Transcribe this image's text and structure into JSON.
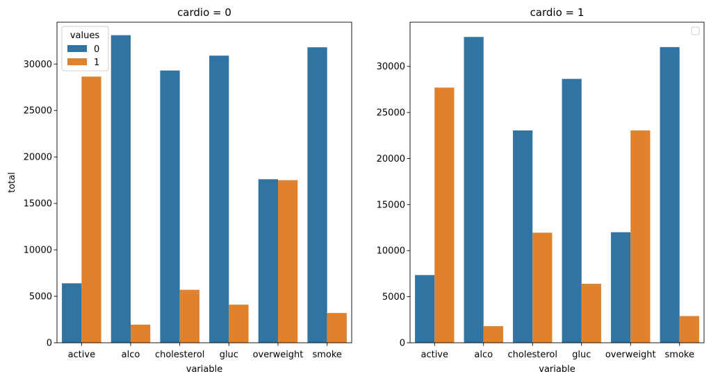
{
  "chart_data": [
    {
      "type": "bar",
      "title": "cardio = 0",
      "xlabel": "variable",
      "ylabel": "total",
      "ylim": [
        0,
        34500
      ],
      "yticks": [
        0,
        5000,
        10000,
        15000,
        20000,
        25000,
        30000
      ],
      "categories": [
        "active",
        "alco",
        "cholesterol",
        "gluc",
        "overweight",
        "smoke"
      ],
      "series": [
        {
          "name": "0",
          "color": "#3274a1",
          "values": [
            6400,
            33100,
            29300,
            30900,
            17600,
            31800
          ]
        },
        {
          "name": "1",
          "color": "#e1812c",
          "values": [
            28650,
            1950,
            5700,
            4100,
            17500,
            3200
          ]
        }
      ],
      "legend": {
        "title": "values",
        "placement": "upper-left",
        "entries": [
          "0",
          "1"
        ]
      }
    },
    {
      "type": "bar",
      "title": "cardio = 1",
      "xlabel": "variable",
      "ylabel": "",
      "ylim": [
        0,
        34800
      ],
      "yticks": [
        0,
        5000,
        10000,
        15000,
        20000,
        25000,
        30000
      ],
      "categories": [
        "active",
        "alco",
        "cholesterol",
        "gluc",
        "overweight",
        "smoke"
      ],
      "series": [
        {
          "name": "0",
          "color": "#3274a1",
          "values": [
            7350,
            33200,
            23050,
            28650,
            12000,
            32100
          ]
        },
        {
          "name": "1",
          "color": "#e1812c",
          "values": [
            27700,
            1800,
            11950,
            6400,
            23050,
            2900
          ]
        }
      ],
      "legend": {
        "title": "",
        "placement": "upper-right",
        "entries": []
      }
    }
  ]
}
